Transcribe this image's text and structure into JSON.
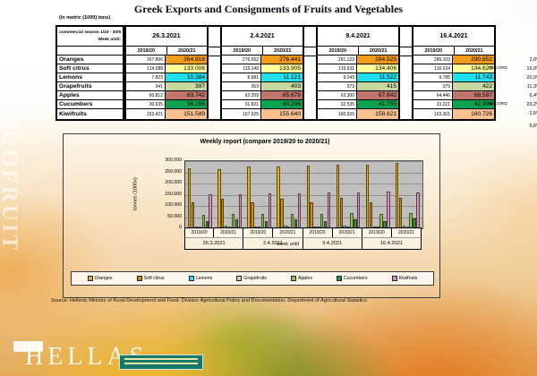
{
  "page": {
    "title": "Greek Exports and Consignments of Fruits and Vegetables",
    "units_note": "(in metric (1000) tons)",
    "source": "Source: Hellenic Ministry of Rural Development and Food- Division Agricultural Policy and Documentation, Department of Agricultural Statistics",
    "watermark_vertical": "INCOFRUIT",
    "watermark_bottom": "HELLAS"
  },
  "table": {
    "corner": {
      "line1": "commercial season 1/10 - 30/9",
      "line2": "Week until:"
    },
    "weeks": [
      "26.3.2021",
      "2.4.2021",
      "9.4.2021",
      "16.4.2021"
    ],
    "year_headers": [
      "2019/20",
      "2020/21"
    ],
    "rows": [
      {
        "product": "Oranges",
        "cell_color": "#F59A19",
        "values": [
          [
            "267.896",
            "264.916"
          ],
          [
            "276.552",
            "276.441"
          ],
          [
            "281.123",
            "284.525"
          ],
          [
            "285.103",
            "290.852"
          ]
        ],
        "note": "",
        "pct": "2,0%"
      },
      {
        "product": "Soft citrus",
        "cell_color": "#FFFF9C",
        "values": [
          [
            "114.088",
            "133.006"
          ],
          [
            "115.149",
            "133.905"
          ],
          [
            "115.631",
            "134.406"
          ],
          [
            "116.024",
            "134.620"
          ]
        ],
        "note": "RECORD",
        "pct": "16,0%"
      },
      {
        "product": "Lemons",
        "cell_color": "#20E0EE",
        "values": [
          [
            "7.823",
            "10.384"
          ],
          [
            "8.681",
            "11.121"
          ],
          [
            "9.249",
            "11.522"
          ],
          [
            "9.785",
            "11.743"
          ]
        ],
        "note": "",
        "pct": "20,0%"
      },
      {
        "product": "Grapefruits",
        "cell_color": "#C9D7A0",
        "values": [
          [
            "341",
            "397"
          ],
          [
            "363",
            "403"
          ],
          [
            "373",
            "415"
          ],
          [
            "379",
            "422"
          ]
        ],
        "note": "",
        "pct": "11,3%"
      },
      {
        "product": "Apples",
        "cell_color": "#C0766B",
        "values": [
          [
            "60.812",
            "63.742"
          ],
          [
            "62.209",
            "65.679"
          ],
          [
            "63.300",
            "67.842"
          ],
          [
            "64.446",
            "68.597"
          ]
        ],
        "note": "",
        "pct": "6,4%"
      },
      {
        "product": "Cucumbers",
        "cell_color": "#0EA44E",
        "values": [
          [
            "30.635",
            "38.156"
          ],
          [
            "31.821",
            "40.296"
          ],
          [
            "32.535",
            "41.755"
          ],
          [
            "33.221",
            "42.909"
          ]
        ],
        "note": "RECORD",
        "pct": "29,2%"
      },
      {
        "product": "Kiwifruits",
        "cell_color": "#FAC090",
        "values": [
          [
            "153.421",
            "151.589"
          ],
          [
            "157.925",
            "155.640"
          ],
          [
            "160.526",
            "158.621"
          ],
          [
            "163.301",
            "160.726"
          ]
        ],
        "note": "",
        "pct": "-1,6%"
      }
    ],
    "total_pct": "5,6%"
  },
  "chart_data": {
    "type": "bar",
    "title": "Weekly report (compare 2019/20 to 2020/21)",
    "ylabel": "tonnes (1000x)",
    "xlabel": "week until",
    "ylim": [
      0,
      300
    ],
    "units": "thousand tons",
    "grid": true,
    "legend_position": "bottom",
    "ytick_labels": [
      "0",
      "50.000",
      "100.000",
      "150.000",
      "200.000",
      "250.000",
      "300.000"
    ],
    "group_labels": [
      "2019/20",
      "2020/21",
      "2019/20",
      "2020/21",
      "2019/20",
      "2020/21",
      "2019/20",
      "2020/21"
    ],
    "week_labels": [
      "26.3.2021",
      "2.4.2021",
      "9.4.2021",
      "16.4.2021"
    ],
    "series": [
      {
        "name": "Oranges",
        "color": "#DFAE1C",
        "values": [
          267.896,
          264.916,
          276.552,
          276.441,
          281.123,
          284.525,
          285.103,
          290.852
        ]
      },
      {
        "name": "Soft citrus",
        "color": "#C68E17",
        "values": [
          114.088,
          133.006,
          115.149,
          133.905,
          115.631,
          134.406,
          116.024,
          134.62
        ]
      },
      {
        "name": "Lemons",
        "color": "#44D8E8",
        "values": [
          7.823,
          10.384,
          8.681,
          11.121,
          9.249,
          11.522,
          9.785,
          11.743
        ]
      },
      {
        "name": "Grapefruits",
        "color": "#C9D7A0",
        "values": [
          0.341,
          0.397,
          0.363,
          0.403,
          0.373,
          0.415,
          0.379,
          0.422
        ]
      },
      {
        "name": "Apples",
        "color": "#94BE52",
        "values": [
          60.812,
          63.742,
          62.209,
          65.679,
          63.3,
          67.842,
          64.446,
          68.597
        ]
      },
      {
        "name": "Cucumbers",
        "color": "#2F9240",
        "values": [
          30.635,
          38.156,
          31.821,
          40.296,
          32.535,
          41.755,
          33.221,
          42.909
        ]
      },
      {
        "name": "Kiwifruits",
        "color": "#D88CC4",
        "values": [
          153.421,
          151.589,
          157.925,
          155.64,
          160.526,
          158.621,
          163.301,
          160.726
        ]
      }
    ]
  }
}
